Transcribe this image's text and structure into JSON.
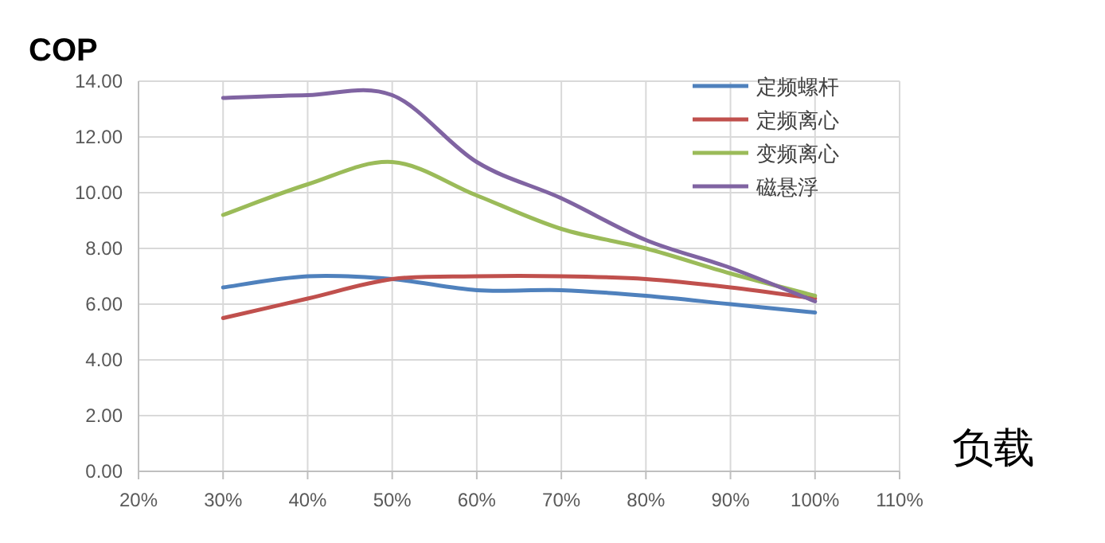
{
  "chart_data": {
    "type": "line",
    "ylabel": "COP",
    "xlabel": "负载",
    "x": [
      0.3,
      0.4,
      0.5,
      0.6,
      0.7,
      0.8,
      0.9,
      1.0
    ],
    "series": [
      {
        "name": "定频螺杆",
        "color": "#4f81bd",
        "values": [
          6.6,
          7.0,
          6.9,
          6.5,
          6.5,
          6.3,
          6.0,
          5.7
        ]
      },
      {
        "name": "定频离心",
        "color": "#c0504d",
        "values": [
          5.5,
          6.2,
          6.9,
          7.0,
          7.0,
          6.9,
          6.6,
          6.2
        ]
      },
      {
        "name": "变频离心",
        "color": "#9bbb59",
        "values": [
          9.2,
          10.3,
          11.1,
          9.9,
          8.7,
          8.0,
          7.1,
          6.3
        ]
      },
      {
        "name": "磁悬浮",
        "color": "#8064a2",
        "values": [
          13.4,
          13.5,
          13.5,
          11.1,
          9.8,
          8.3,
          7.3,
          6.1
        ]
      }
    ],
    "xlim": [
      0.2,
      1.1
    ],
    "xticks": [
      {
        "value": 0.2,
        "label": "20%"
      },
      {
        "value": 0.3,
        "label": "30%"
      },
      {
        "value": 0.4,
        "label": "40%"
      },
      {
        "value": 0.5,
        "label": "50%"
      },
      {
        "value": 0.6,
        "label": "60%"
      },
      {
        "value": 0.7,
        "label": "70%"
      },
      {
        "value": 0.8,
        "label": "80%"
      },
      {
        "value": 0.9,
        "label": "90%"
      },
      {
        "value": 1.0,
        "label": "100%"
      },
      {
        "value": 1.1,
        "label": "110%"
      }
    ],
    "ylim": [
      0,
      14
    ],
    "yticks": [
      {
        "value": 0,
        "label": "0.00"
      },
      {
        "value": 2,
        "label": "2.00"
      },
      {
        "value": 4,
        "label": "4.00"
      },
      {
        "value": 6,
        "label": "6.00"
      },
      {
        "value": 8,
        "label": "8.00"
      },
      {
        "value": 10,
        "label": "10.00"
      },
      {
        "value": 12,
        "label": "12.00"
      },
      {
        "value": 14,
        "label": "14.00"
      }
    ],
    "grid": true,
    "legend": "top right",
    "line_style": "solid",
    "marker": "none"
  }
}
